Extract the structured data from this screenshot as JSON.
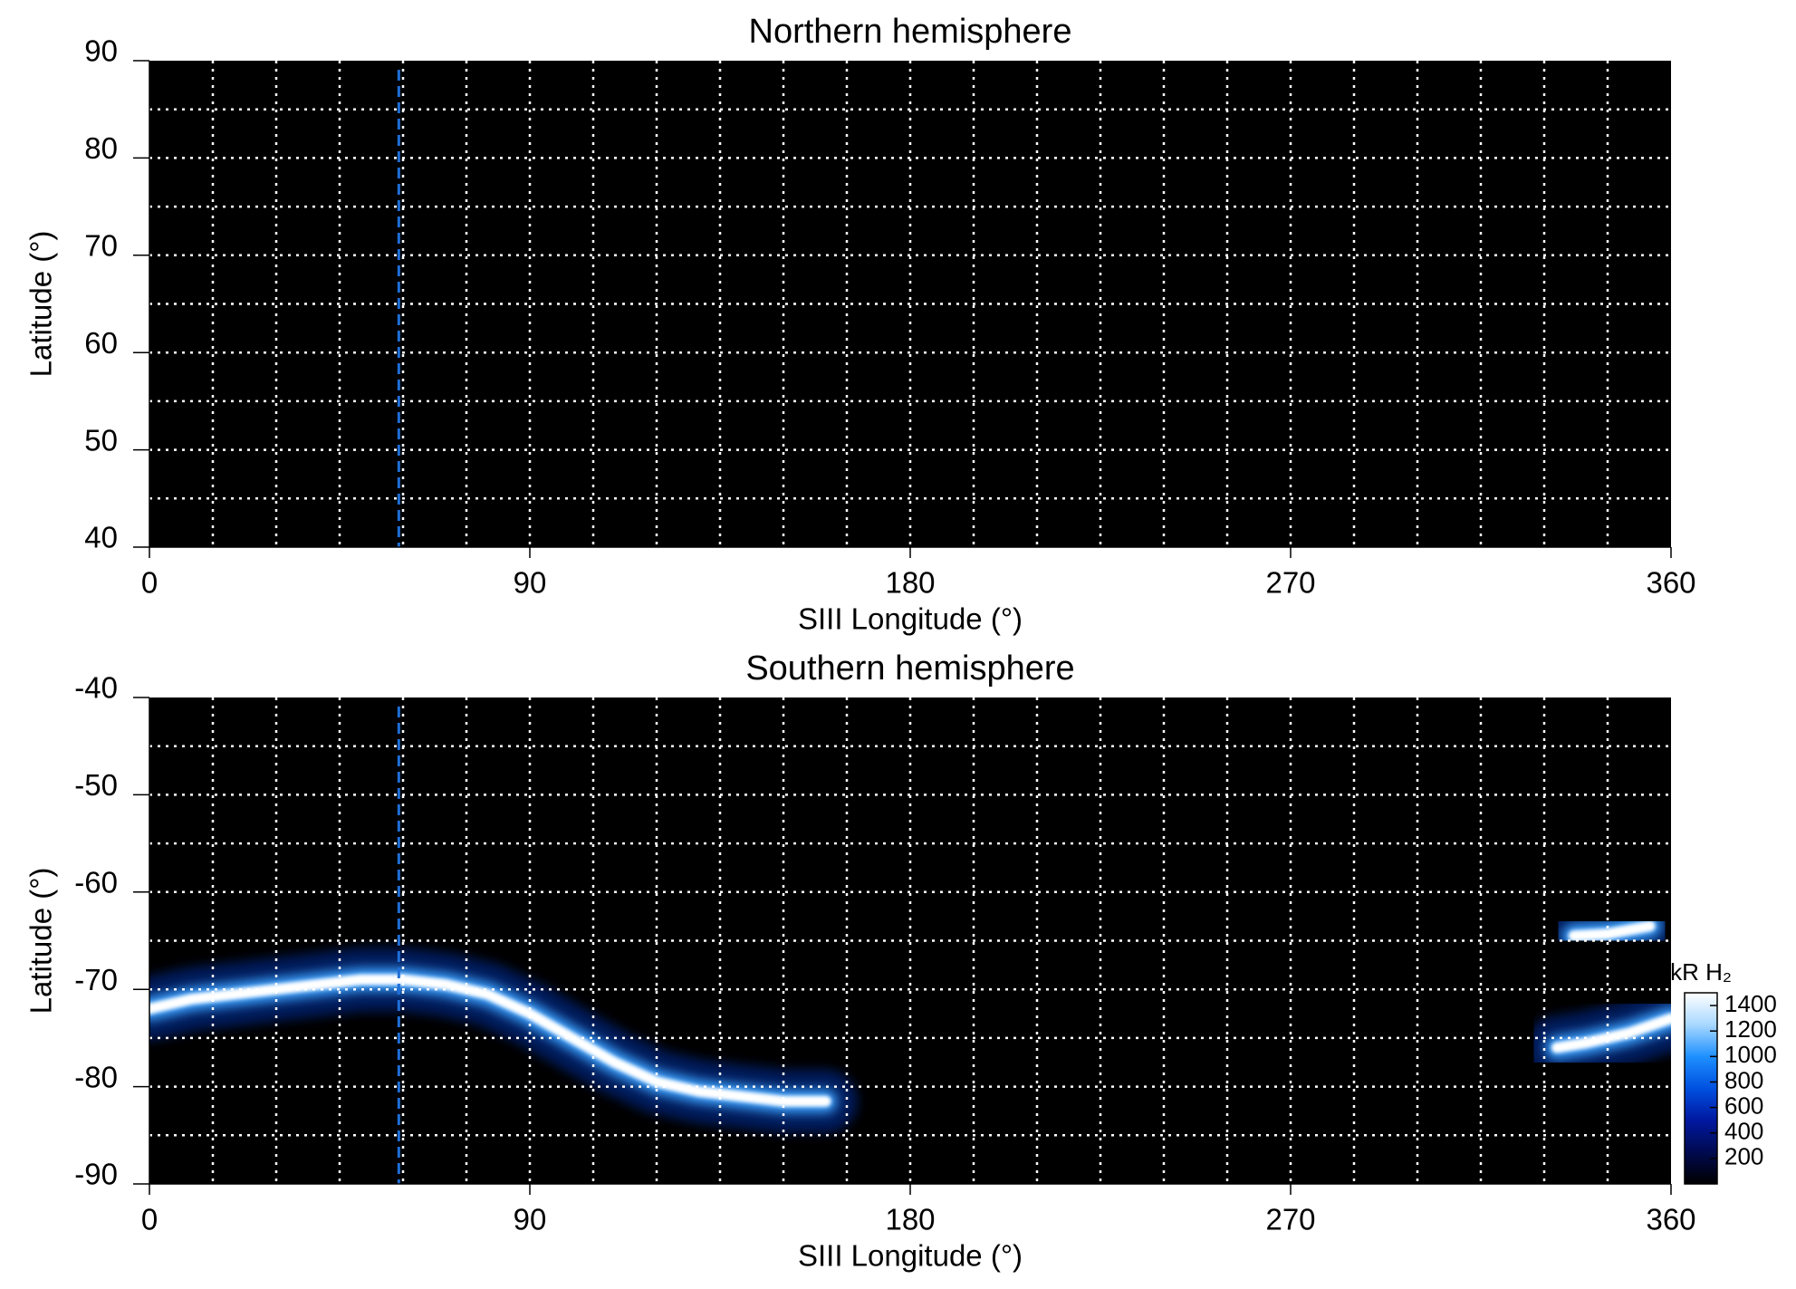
{
  "chart_data": [
    {
      "type": "map",
      "title": "Northern hemisphere",
      "xlabel": "SIII Longitude (°)",
      "ylabel": "Latitude (°)",
      "xlim": [
        0,
        360
      ],
      "xticks": [
        0,
        90,
        180,
        270,
        360
      ],
      "ylim": [
        40,
        90
      ],
      "yticks": [
        40,
        50,
        60,
        70,
        80,
        90
      ],
      "xgrid": [
        15,
        30,
        45,
        60,
        75,
        90,
        105,
        120,
        135,
        150,
        165,
        180,
        195,
        210,
        225,
        240,
        255,
        270,
        285,
        300,
        315,
        330,
        345
      ],
      "ygrid": [
        45,
        50,
        55,
        60,
        65,
        70,
        75,
        80,
        85
      ],
      "background": "#000000",
      "grid_color": "#ffffff",
      "vline": {
        "x": 59,
        "color": "#1f6fd8"
      },
      "series": []
    },
    {
      "type": "map",
      "title": "Southern hemisphere",
      "xlabel": "SIII Longitude (°)",
      "ylabel": "Latitude (°)",
      "xlim": [
        0,
        360
      ],
      "xticks": [
        0,
        90,
        180,
        270,
        360
      ],
      "ylim": [
        -90,
        -40
      ],
      "yticks": [
        -90,
        -80,
        -70,
        -60,
        -50,
        -40
      ],
      "xgrid": [
        15,
        30,
        45,
        60,
        75,
        90,
        105,
        120,
        135,
        150,
        165,
        180,
        195,
        210,
        225,
        240,
        255,
        270,
        285,
        300,
        315,
        330,
        345
      ],
      "ygrid": [
        -85,
        -80,
        -75,
        -70,
        -65,
        -60,
        -55,
        -50,
        -45
      ],
      "background": "#000000",
      "grid_color": "#ffffff",
      "vline": {
        "x": 59,
        "color": "#1f6fd8"
      },
      "series": [
        {
          "color": "#ffffff",
          "x": [
            0,
            10,
            20,
            30,
            40,
            50,
            60,
            70,
            80,
            90,
            100,
            110,
            120,
            130,
            140,
            150,
            160
          ],
          "values": [
            -72,
            -71,
            -70.5,
            -70,
            -69.5,
            -69,
            -69,
            -69.5,
            -70.5,
            -72.5,
            -75,
            -77.5,
            -79.5,
            -80.5,
            -81,
            -81.5,
            -81.5
          ]
        },
        {
          "color": "#ffffff",
          "x": [
            337,
            345,
            355
          ],
          "values": [
            -64.5,
            -64.3,
            -63.5
          ]
        },
        {
          "color": "#ffffff",
          "x": [
            333,
            340,
            350,
            360
          ],
          "values": [
            -76,
            -75.5,
            -74.5,
            -73
          ]
        }
      ],
      "colorbar": {
        "label": "kR H₂",
        "lim": [
          0,
          1500
        ],
        "ticks": [
          200,
          400,
          600,
          800,
          1000,
          1200,
          1400
        ],
        "colors": [
          "#000000",
          "#000a50",
          "#0018a0",
          "#0050e0",
          "#1e90ff",
          "#a8d8ff",
          "#ffffff"
        ]
      }
    }
  ]
}
